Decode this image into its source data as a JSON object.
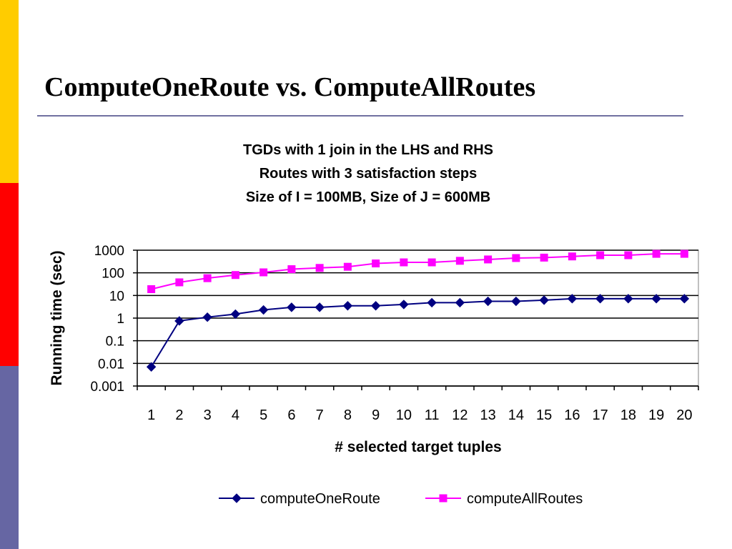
{
  "slide": {
    "title": "ComputeOneRoute vs. ComputeAllRoutes",
    "sidebar_colors": [
      "#FFCC00",
      "#FF0000",
      "#6666A3"
    ],
    "rule_color": "#7070A0"
  },
  "chart_data": {
    "type": "line",
    "title_lines": [
      "TGDs with 1 join in the LHS and RHS",
      "Routes with 3 satisfaction steps",
      "Size of I = 100MB, Size of J = 600MB"
    ],
    "xlabel": "# selected target tuples",
    "ylabel": "Running time (sec)",
    "y_scale": "log",
    "ylim": [
      0.001,
      1000
    ],
    "y_ticks": [
      "0.001",
      "0.01",
      "0.1",
      "1",
      "10",
      "100",
      "1000"
    ],
    "grid": true,
    "legend_position": "bottom",
    "categories": [
      "1",
      "2",
      "3",
      "4",
      "5",
      "6",
      "7",
      "8",
      "9",
      "10",
      "11",
      "12",
      "13",
      "14",
      "15",
      "16",
      "17",
      "18",
      "19",
      "20"
    ],
    "series": [
      {
        "name": "computeOneRoute",
        "color": "#000080",
        "marker": "diamond",
        "values": [
          0.007,
          0.75,
          1.1,
          1.5,
          2.3,
          3.0,
          3.0,
          3.5,
          3.5,
          4.0,
          4.8,
          4.8,
          5.5,
          5.5,
          6.2,
          7.2,
          7.2,
          7.2,
          7.2,
          7.2
        ]
      },
      {
        "name": "computeAllRoutes",
        "color": "#FF00FF",
        "marker": "square",
        "values": [
          19,
          38,
          58,
          80,
          105,
          145,
          165,
          185,
          260,
          290,
          290,
          340,
          390,
          450,
          470,
          530,
          600,
          600,
          690,
          690
        ]
      }
    ]
  }
}
